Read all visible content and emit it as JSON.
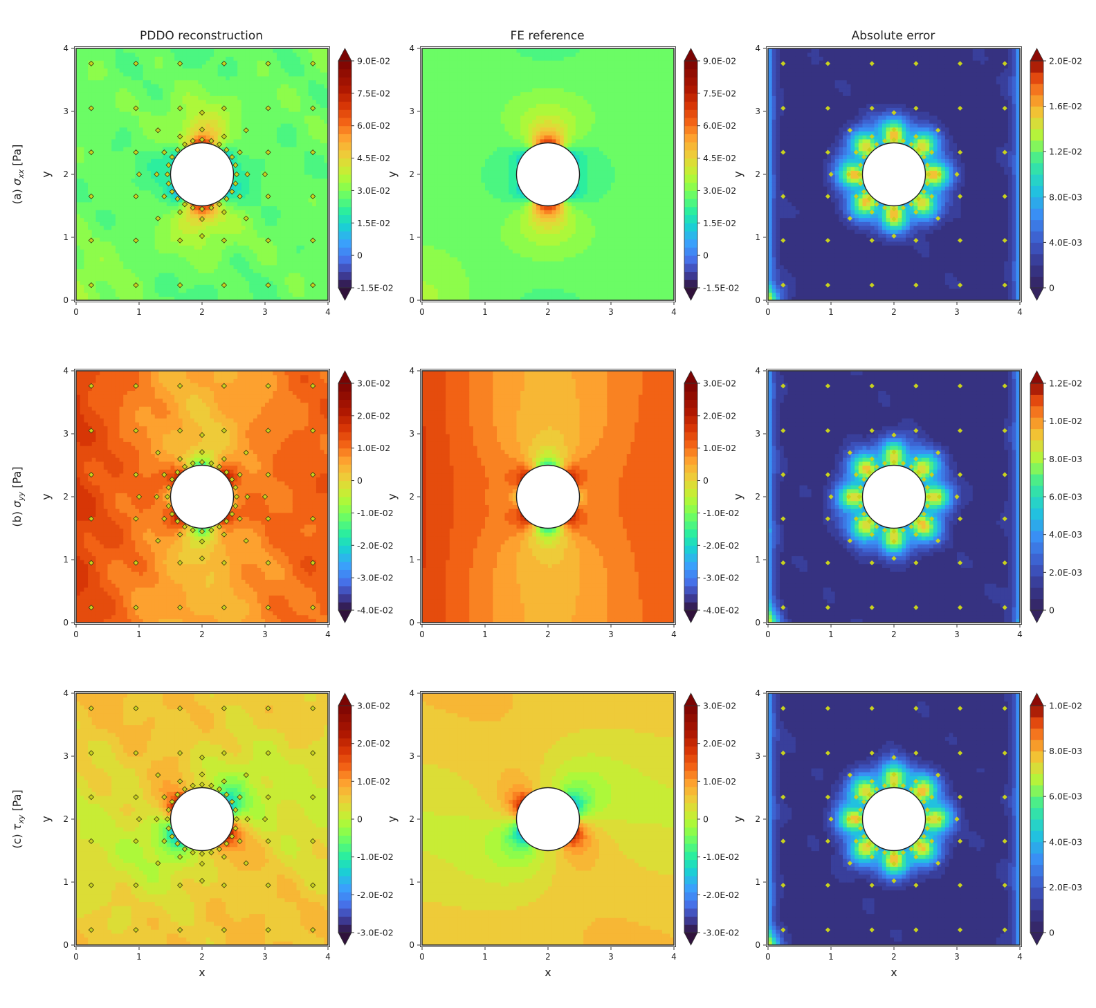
{
  "chart_data": {
    "type": "heatmap",
    "column_titles": [
      "PDDO reconstruction",
      "FE reference",
      "Absolute error"
    ],
    "row_labels": [
      {
        "prefix": "(a)",
        "symbol": "σ",
        "subscript": "xx",
        "unit": "[Pa]"
      },
      {
        "prefix": "(b)",
        "symbol": "σ",
        "subscript": "yy",
        "unit": "[Pa]"
      },
      {
        "prefix": "(c)",
        "symbol": "τ",
        "subscript": "xy",
        "unit": "[Pa]"
      }
    ],
    "xlabel": "x",
    "ylabel": "y",
    "xlim": [
      0,
      4
    ],
    "ylim": [
      0,
      4
    ],
    "ticks": [
      "0",
      "1",
      "2",
      "3",
      "4"
    ],
    "hole": {
      "center": [
        2,
        2
      ],
      "radius": 0.5
    },
    "colormap": "turbo",
    "error_colormap": "turbo-dark",
    "marker_color": "#c8d21e",
    "sensor_points": [
      [
        0.24,
        0.24
      ],
      [
        0.95,
        0.24
      ],
      [
        1.65,
        0.24
      ],
      [
        2.35,
        0.24
      ],
      [
        3.05,
        0.24
      ],
      [
        3.76,
        0.24
      ],
      [
        0.24,
        0.95
      ],
      [
        0.95,
        0.95
      ],
      [
        1.65,
        0.95
      ],
      [
        2.35,
        0.95
      ],
      [
        3.05,
        0.95
      ],
      [
        3.76,
        0.95
      ],
      [
        0.24,
        1.65
      ],
      [
        0.95,
        1.65
      ],
      [
        3.05,
        1.65
      ],
      [
        3.76,
        1.65
      ],
      [
        0.24,
        2.35
      ],
      [
        0.95,
        2.35
      ],
      [
        3.05,
        2.35
      ],
      [
        3.76,
        2.35
      ],
      [
        0.24,
        3.05
      ],
      [
        0.95,
        3.05
      ],
      [
        1.65,
        3.05
      ],
      [
        2.35,
        3.05
      ],
      [
        3.05,
        3.05
      ],
      [
        3.76,
        3.05
      ],
      [
        0.24,
        3.76
      ],
      [
        0.95,
        3.76
      ],
      [
        1.65,
        3.76
      ],
      [
        2.35,
        3.76
      ],
      [
        3.05,
        3.76
      ],
      [
        3.76,
        3.76
      ],
      [
        2.0,
        1.02
      ],
      [
        2.0,
        2.98
      ],
      [
        1.0,
        2.0
      ],
      [
        3.0,
        2.0
      ],
      [
        1.3,
        1.3
      ],
      [
        2.7,
        1.3
      ],
      [
        1.3,
        2.7
      ],
      [
        2.7,
        2.7
      ],
      [
        1.65,
        1.4
      ],
      [
        2.35,
        1.4
      ],
      [
        1.65,
        2.6
      ],
      [
        2.35,
        2.6
      ],
      [
        1.4,
        1.65
      ],
      [
        2.6,
        1.65
      ],
      [
        1.4,
        2.35
      ],
      [
        2.6,
        2.35
      ],
      [
        1.28,
        2.0
      ],
      [
        2.72,
        2.0
      ],
      [
        2.0,
        1.29
      ],
      [
        2.0,
        2.71
      ],
      [
        2.55,
        2.0
      ],
      [
        2.531,
        2.147
      ],
      [
        2.476,
        2.275
      ],
      [
        2.389,
        2.389
      ],
      [
        2.275,
        2.476
      ],
      [
        2.147,
        2.531
      ],
      [
        2.0,
        2.55
      ],
      [
        1.853,
        2.531
      ],
      [
        1.725,
        2.476
      ],
      [
        1.611,
        2.389
      ],
      [
        1.524,
        2.275
      ],
      [
        1.469,
        2.147
      ],
      [
        1.45,
        2.0
      ],
      [
        1.469,
        1.853
      ],
      [
        1.524,
        1.725
      ],
      [
        1.611,
        1.611
      ],
      [
        1.725,
        1.524
      ],
      [
        1.853,
        1.469
      ],
      [
        2.0,
        1.45
      ],
      [
        2.147,
        1.469
      ],
      [
        2.275,
        1.524
      ],
      [
        2.389,
        1.611
      ],
      [
        2.476,
        1.725
      ],
      [
        2.531,
        1.853
      ]
    ],
    "panels": [
      {
        "row": 0,
        "col": 0,
        "field": "sigma_xx",
        "kind": "pddo",
        "vmin": -0.015,
        "vmax": 0.09,
        "colorbar_ticks": [
          "-1.5E-02",
          "0",
          "1.5E-02",
          "3.0E-02",
          "4.5E-02",
          "6.0E-02",
          "7.5E-02",
          "9.0E-02"
        ],
        "colorbar_values": [
          -0.015,
          0,
          0.015,
          0.03,
          0.045,
          0.06,
          0.075,
          0.09
        ]
      },
      {
        "row": 0,
        "col": 1,
        "field": "sigma_xx",
        "kind": "fe",
        "vmin": -0.015,
        "vmax": 0.09,
        "colorbar_ticks": [
          "-1.5E-02",
          "0",
          "1.5E-02",
          "3.0E-02",
          "4.5E-02",
          "6.0E-02",
          "7.5E-02",
          "9.0E-02"
        ],
        "colorbar_values": [
          -0.015,
          0,
          0.015,
          0.03,
          0.045,
          0.06,
          0.075,
          0.09
        ]
      },
      {
        "row": 0,
        "col": 2,
        "field": "sigma_xx",
        "kind": "err",
        "vmin": 0,
        "vmax": 0.02,
        "colorbar_ticks": [
          "0",
          "4.0E-03",
          "8.0E-03",
          "1.2E-02",
          "1.6E-02",
          "2.0E-02"
        ],
        "colorbar_values": [
          0,
          0.004,
          0.008,
          0.012,
          0.016,
          0.02
        ]
      },
      {
        "row": 1,
        "col": 0,
        "field": "sigma_yy",
        "kind": "pddo",
        "vmin": -0.04,
        "vmax": 0.03,
        "colorbar_ticks": [
          "-4.0E-02",
          "-3.0E-02",
          "-2.0E-02",
          "-1.0E-02",
          "0",
          "1.0E-02",
          "2.0E-02",
          "3.0E-02"
        ],
        "colorbar_values": [
          -0.04,
          -0.03,
          -0.02,
          -0.01,
          0,
          0.01,
          0.02,
          0.03
        ]
      },
      {
        "row": 1,
        "col": 1,
        "field": "sigma_yy",
        "kind": "fe",
        "vmin": -0.04,
        "vmax": 0.03,
        "colorbar_ticks": [
          "-4.0E-02",
          "-3.0E-02",
          "-2.0E-02",
          "-1.0E-02",
          "0",
          "1.0E-02",
          "2.0E-02",
          "3.0E-02"
        ],
        "colorbar_values": [
          -0.04,
          -0.03,
          -0.02,
          -0.01,
          0,
          0.01,
          0.02,
          0.03
        ]
      },
      {
        "row": 1,
        "col": 2,
        "field": "sigma_yy",
        "kind": "err",
        "vmin": 0,
        "vmax": 0.012,
        "colorbar_ticks": [
          "0",
          "2.0E-03",
          "4.0E-03",
          "6.0E-03",
          "8.0E-03",
          "1.0E-02",
          "1.2E-02"
        ],
        "colorbar_values": [
          0,
          0.002,
          0.004,
          0.006,
          0.008,
          0.01,
          0.012
        ]
      },
      {
        "row": 2,
        "col": 0,
        "field": "tau_xy",
        "kind": "pddo",
        "vmin": -0.03,
        "vmax": 0.03,
        "colorbar_ticks": [
          "-3.0E-02",
          "-2.0E-02",
          "-1.0E-02",
          "0",
          "1.0E-02",
          "2.0E-02",
          "3.0E-02"
        ],
        "colorbar_values": [
          -0.03,
          -0.02,
          -0.01,
          0,
          0.01,
          0.02,
          0.03
        ]
      },
      {
        "row": 2,
        "col": 1,
        "field": "tau_xy",
        "kind": "fe",
        "vmin": -0.03,
        "vmax": 0.03,
        "colorbar_ticks": [
          "-3.0E-02",
          "-2.0E-02",
          "-1.0E-02",
          "0",
          "1.0E-02",
          "2.0E-02",
          "3.0E-02"
        ],
        "colorbar_values": [
          -0.03,
          -0.02,
          -0.01,
          0,
          0.01,
          0.02,
          0.03
        ]
      },
      {
        "row": 2,
        "col": 2,
        "field": "tau_xy",
        "kind": "err",
        "vmin": 0,
        "vmax": 0.01,
        "colorbar_ticks": [
          "0",
          "2.0E-03",
          "4.0E-03",
          "6.0E-03",
          "8.0E-03",
          "1.0E-02"
        ],
        "colorbar_values": [
          0,
          0.002,
          0.004,
          0.006,
          0.008,
          0.01
        ]
      }
    ]
  }
}
